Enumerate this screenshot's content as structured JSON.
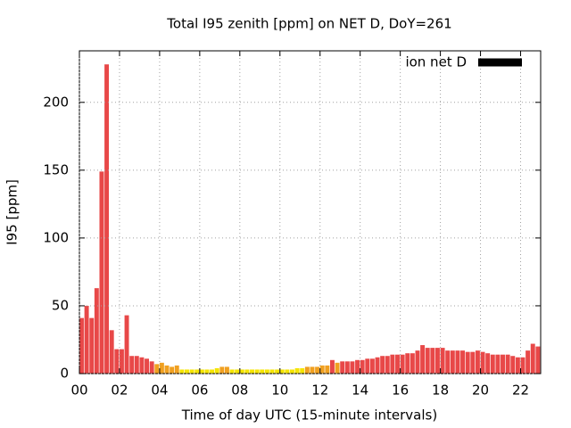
{
  "chart_data": {
    "type": "bar",
    "title": "Total I95 zenith [ppm] on NET D, DoY=261",
    "x_label": "Time of day UTC (15-minute intervals)",
    "y_label": "I95 [ppm]",
    "x": [
      0,
      0.25,
      0.5,
      0.75,
      1,
      1.25,
      1.5,
      1.75,
      2,
      2.25,
      2.5,
      2.75,
      3,
      3.25,
      3.5,
      3.75,
      4,
      4.25,
      4.5,
      4.75,
      5,
      5.25,
      5.5,
      5.75,
      6,
      6.25,
      6.5,
      6.75,
      7,
      7.25,
      7.5,
      7.75,
      8,
      8.25,
      8.5,
      8.75,
      9,
      9.25,
      9.5,
      9.75,
      10,
      10.25,
      10.5,
      10.75,
      11,
      11.25,
      11.5,
      11.75,
      12,
      12.25,
      12.5,
      12.75,
      13,
      13.25,
      13.5,
      13.75,
      14,
      14.25,
      14.5,
      14.75,
      15,
      15.25,
      15.5,
      15.75,
      16,
      16.25,
      16.5,
      16.75,
      17,
      17.25,
      17.5,
      17.75,
      18,
      18.25,
      18.5,
      18.75,
      19,
      19.25,
      19.5,
      19.75,
      20,
      20.25,
      20.5,
      20.75,
      21,
      21.25,
      21.5,
      21.75,
      22,
      22.25,
      22.5,
      22.75,
      23
    ],
    "series": [
      {
        "name": "ion net D",
        "color": "#000000",
        "values": [
          41,
          50,
          41,
          63,
          149,
          228,
          32,
          18,
          18,
          43,
          13,
          13,
          12,
          11,
          9,
          7,
          8,
          6,
          5,
          6,
          3,
          3,
          3,
          3,
          3,
          3,
          3,
          4,
          5,
          5,
          3,
          3,
          3,
          3,
          3,
          3,
          3,
          3,
          3,
          3,
          3,
          3,
          3,
          4,
          4,
          5,
          5,
          5,
          6,
          6,
          10,
          8,
          9,
          9,
          9,
          10,
          10,
          11,
          11,
          12,
          13,
          13,
          14,
          14,
          14,
          15,
          15,
          17,
          21,
          19,
          19,
          19,
          19,
          17,
          17,
          17,
          17,
          16,
          16,
          17,
          16,
          15,
          14,
          14,
          14,
          14,
          13,
          12,
          12,
          17,
          22,
          20,
          25
        ],
        "colors": [
          "#e84848",
          "#e84848",
          "#e84848",
          "#e84848",
          "#e84848",
          "#e84848",
          "#e84848",
          "#e84848",
          "#e84848",
          "#e84848",
          "#e84848",
          "#e84848",
          "#e84848",
          "#e84848",
          "#e84848",
          "#f0a020",
          "#f0a020",
          "#f0a020",
          "#f0a020",
          "#f0a020",
          "#f5e400",
          "#f5e400",
          "#f5e400",
          "#f5e400",
          "#f5e400",
          "#f5e400",
          "#f5e400",
          "#f5e400",
          "#f0a020",
          "#f0a020",
          "#f5e400",
          "#f5e400",
          "#f5e400",
          "#f5e400",
          "#f5e400",
          "#f5e400",
          "#f5e400",
          "#f5e400",
          "#f5e400",
          "#f5e400",
          "#f5e400",
          "#f5e400",
          "#f5e400",
          "#f5e400",
          "#f5e400",
          "#f0a020",
          "#f0a020",
          "#f0a020",
          "#f0a020",
          "#f0a020",
          "#e84848",
          "#f0a020",
          "#e84848",
          "#e84848",
          "#e84848",
          "#e84848",
          "#e84848",
          "#e84848",
          "#e84848",
          "#e84848",
          "#e84848",
          "#e84848",
          "#e84848",
          "#e84848",
          "#e84848",
          "#e84848",
          "#e84848",
          "#e84848",
          "#e84848",
          "#e84848",
          "#e84848",
          "#e84848",
          "#e84848",
          "#e84848",
          "#e84848",
          "#e84848",
          "#e84848",
          "#e84848",
          "#e84848",
          "#e84848",
          "#e84848",
          "#e84848",
          "#e84848",
          "#e84848",
          "#e84848",
          "#e84848",
          "#e84848",
          "#e84848",
          "#e84848",
          "#e84848",
          "#e84848",
          "#e84848",
          "#e84848"
        ]
      }
    ],
    "xlim": [
      0,
      23
    ],
    "ylim": [
      0,
      238
    ],
    "xticks": [
      {
        "value": 0,
        "label": "00"
      },
      {
        "value": 2,
        "label": "02"
      },
      {
        "value": 4,
        "label": "04"
      },
      {
        "value": 6,
        "label": "06"
      },
      {
        "value": 8,
        "label": "08"
      },
      {
        "value": 10,
        "label": "10"
      },
      {
        "value": 12,
        "label": "12"
      },
      {
        "value": 14,
        "label": "14"
      },
      {
        "value": 16,
        "label": "16"
      },
      {
        "value": 18,
        "label": "18"
      },
      {
        "value": 20,
        "label": "20"
      },
      {
        "value": 22,
        "label": "22"
      }
    ],
    "yticks": [
      0,
      50,
      100,
      150,
      200
    ],
    "grid": true,
    "legend": "top-right"
  }
}
